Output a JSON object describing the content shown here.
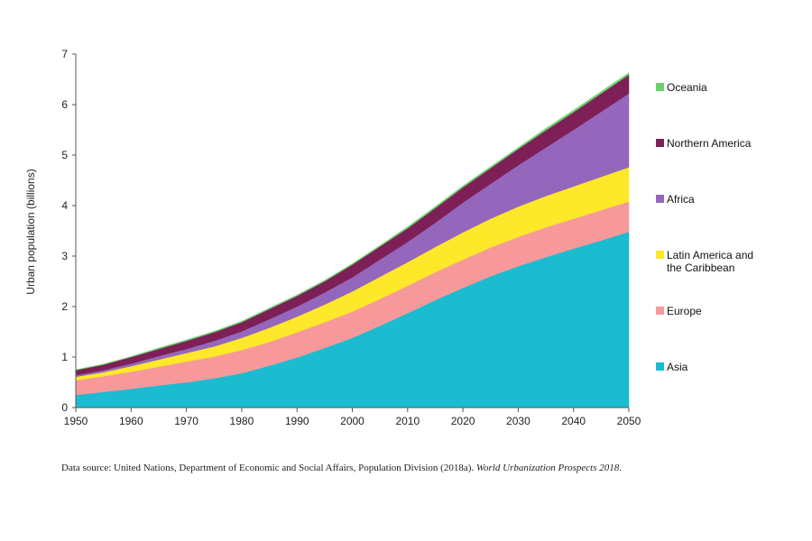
{
  "chart_data": {
    "type": "area",
    "stacked": true,
    "title": "",
    "xlabel": "",
    "ylabel": "Urban population (billions)",
    "x": [
      1950,
      1955,
      1960,
      1965,
      1970,
      1975,
      1980,
      1985,
      1990,
      1995,
      2000,
      2005,
      2010,
      2015,
      2020,
      2025,
      2030,
      2035,
      2040,
      2045,
      2050
    ],
    "xticks": [
      "1950",
      "1960",
      "1970",
      "1980",
      "1990",
      "2000",
      "2010",
      "2020",
      "2030",
      "2040",
      "2050"
    ],
    "yticks": [
      "0",
      "1",
      "2",
      "3",
      "4",
      "5",
      "6",
      "7"
    ],
    "ylim": [
      0,
      7
    ],
    "xlim": [
      1950,
      2050
    ],
    "grid": false,
    "legend_position": "right",
    "series": [
      {
        "name": "Asia",
        "color": "#1bbccf",
        "values": [
          0.25,
          0.31,
          0.37,
          0.44,
          0.5,
          0.58,
          0.68,
          0.83,
          0.99,
          1.18,
          1.38,
          1.62,
          1.87,
          2.13,
          2.37,
          2.6,
          2.8,
          2.98,
          3.15,
          3.31,
          3.48
        ]
      },
      {
        "name": "Europe",
        "color": "#f7999a",
        "values": [
          0.29,
          0.31,
          0.34,
          0.37,
          0.41,
          0.43,
          0.46,
          0.47,
          0.5,
          0.51,
          0.52,
          0.53,
          0.54,
          0.55,
          0.56,
          0.57,
          0.58,
          0.59,
          0.59,
          0.6,
          0.6
        ]
      },
      {
        "name": "Latin America and the Caribbean",
        "color": "#fde82a",
        "values": [
          0.07,
          0.08,
          0.11,
          0.14,
          0.17,
          0.2,
          0.24,
          0.28,
          0.31,
          0.35,
          0.4,
          0.44,
          0.47,
          0.5,
          0.54,
          0.57,
          0.6,
          0.62,
          0.64,
          0.66,
          0.68
        ]
      },
      {
        "name": "Africa",
        "color": "#9467bd",
        "values": [
          0.03,
          0.04,
          0.05,
          0.07,
          0.08,
          0.11,
          0.13,
          0.17,
          0.2,
          0.24,
          0.28,
          0.34,
          0.4,
          0.48,
          0.59,
          0.69,
          0.82,
          0.96,
          1.12,
          1.29,
          1.46
        ]
      },
      {
        "name": "Northern America",
        "color": "#7e1f57",
        "values": [
          0.1,
          0.11,
          0.13,
          0.14,
          0.16,
          0.17,
          0.18,
          0.2,
          0.21,
          0.22,
          0.25,
          0.26,
          0.27,
          0.29,
          0.3,
          0.31,
          0.32,
          0.34,
          0.35,
          0.36,
          0.37
        ]
      },
      {
        "name": "Oceania",
        "color": "#69d26b",
        "values": [
          0.01,
          0.01,
          0.01,
          0.02,
          0.02,
          0.02,
          0.02,
          0.02,
          0.02,
          0.02,
          0.02,
          0.02,
          0.03,
          0.03,
          0.03,
          0.03,
          0.03,
          0.04,
          0.04,
          0.04,
          0.04
        ]
      }
    ],
    "legend_order": [
      "Oceania",
      "Northern America",
      "Africa",
      "Latin America and the Caribbean",
      "Europe",
      "Asia"
    ],
    "legend_lines": {
      "Oceania": [
        "Oceania"
      ],
      "Northern America": [
        "Northern America"
      ],
      "Africa": [
        "Africa"
      ],
      "Latin America and the Caribbean": [
        "Latin America and",
        "the Caribbean"
      ],
      "Europe": [
        "Europe"
      ],
      "Asia": [
        "Asia"
      ]
    }
  },
  "source": {
    "prefix": "Data source: United Nations, Department of Economic and Social Affairs, Population Division (2018a). ",
    "title": "World Urbanization Prospects 2018",
    "suffix": "."
  }
}
